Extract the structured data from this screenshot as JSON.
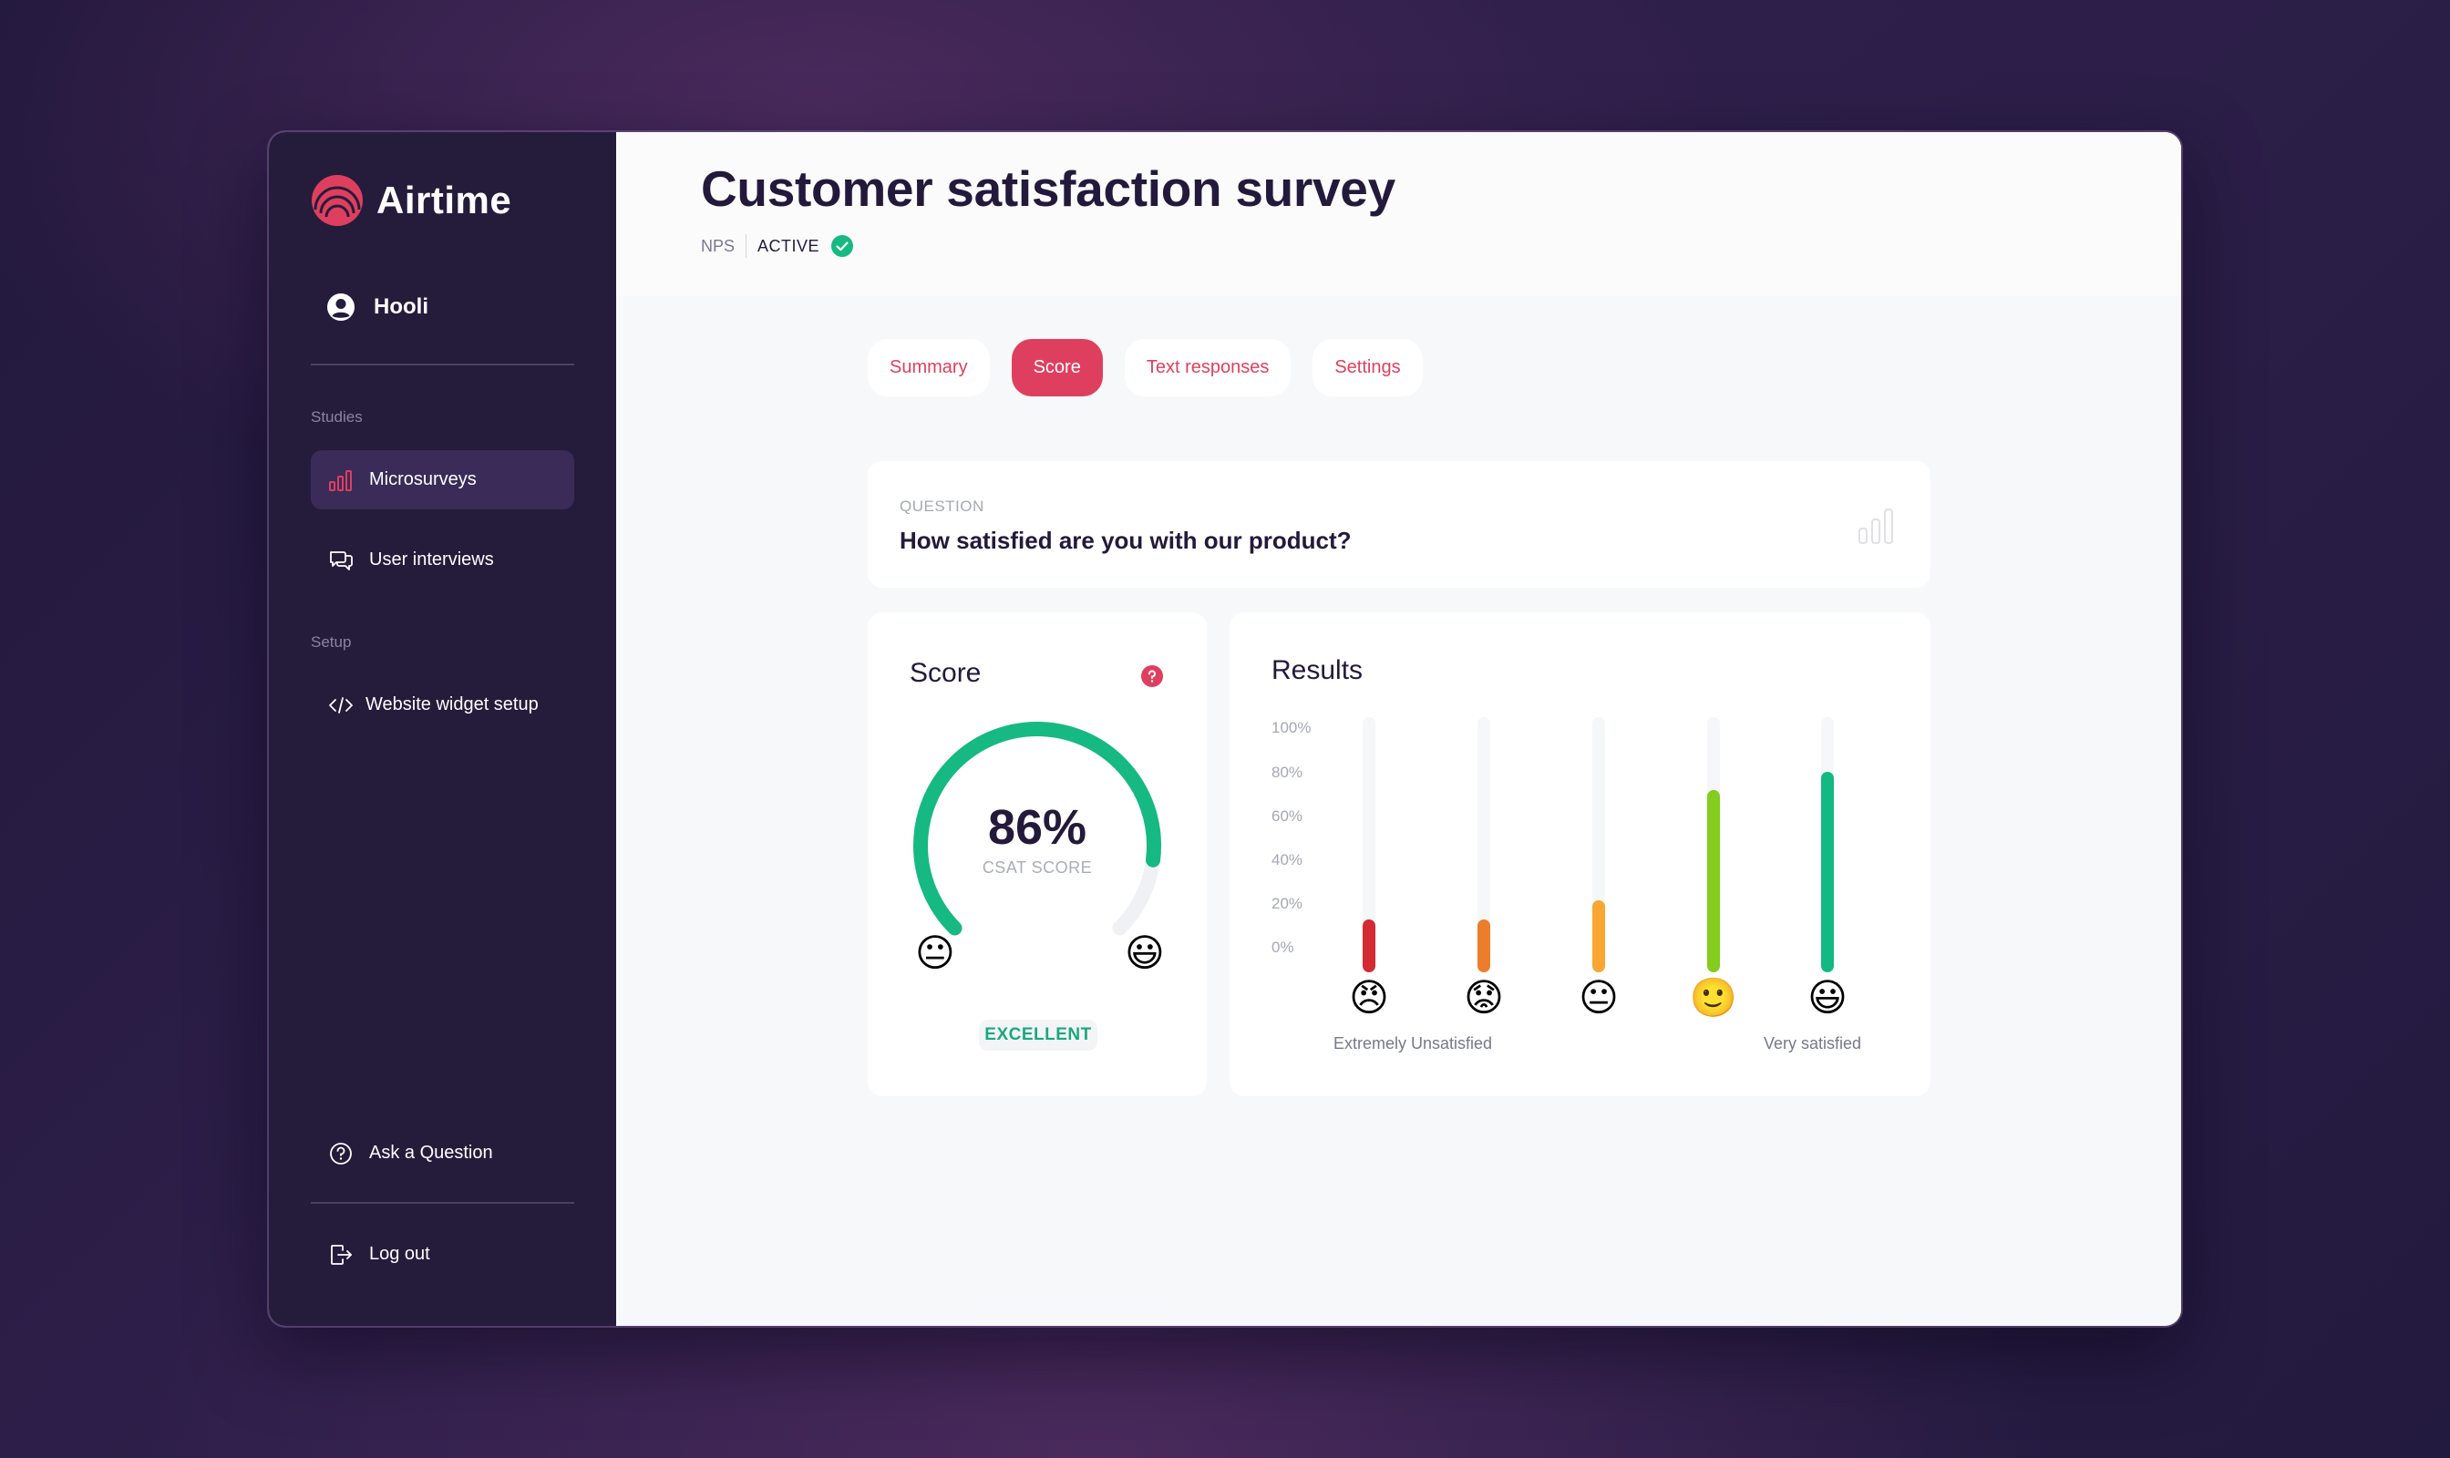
{
  "sidebar": {
    "brand": "Airtime",
    "user": "Hooli",
    "sections": [
      {
        "label": "Studies"
      },
      {
        "label": "Setup"
      }
    ],
    "items": [
      {
        "label": "Microsurveys",
        "icon": "bar-chart-icon",
        "active": true
      },
      {
        "label": "User interviews",
        "icon": "chat-bubbles-icon",
        "active": false
      },
      {
        "label": "Website widget setup",
        "icon": "code-icon",
        "active": false
      }
    ],
    "footer": [
      {
        "label": "Ask a Question",
        "icon": "question-circle-icon"
      },
      {
        "label": "Log out",
        "icon": "logout-icon"
      }
    ]
  },
  "header": {
    "title": "Customer satisfaction survey",
    "type": "NPS",
    "status": "ACTIVE"
  },
  "tabs": [
    {
      "label": "Summary",
      "active": false
    },
    {
      "label": "Score",
      "active": true
    },
    {
      "label": "Text responses",
      "active": false
    },
    {
      "label": "Settings",
      "active": false
    }
  ],
  "question": {
    "label": "QUESTION",
    "text": "How satisfied are you with our product?"
  },
  "score": {
    "title": "Score",
    "value": "86%",
    "value_num": 86,
    "subtitle": "CSAT SCORE",
    "rating": "EXCELLENT",
    "left_emoji": "neutral-face",
    "right_emoji": "grinning-face"
  },
  "results": {
    "title": "Results",
    "y_ticks": [
      "100%",
      "80%",
      "60%",
      "40%",
      "20%",
      "0%"
    ],
    "low_caption": "Extremely Unsatisfied",
    "high_caption": "Very satisfied"
  },
  "colors": {
    "accent": "#df3f5e",
    "sidebar_bg": "#251c3c",
    "success": "#16b981",
    "bars": [
      "#d42a33",
      "#ec7e2b",
      "#f9a633",
      "#84cc1d",
      "#13b981"
    ]
  },
  "chart_data": [
    {
      "type": "bar",
      "title": "Results",
      "categories": [
        "Extremely Unsatisfied",
        "Unsatisfied",
        "Neutral",
        "Satisfied",
        "Very satisfied"
      ],
      "values": [
        18,
        18,
        27,
        77,
        85
      ],
      "xlabel": "",
      "ylabel": "",
      "ylim": [
        0,
        100
      ],
      "y_ticks": [
        "0%",
        "20%",
        "40%",
        "60%",
        "80%",
        "100%"
      ],
      "grid": false,
      "legend": "none",
      "colors": [
        "#d42a33",
        "#ec7e2b",
        "#f9a633",
        "#84cc1d",
        "#13b981"
      ]
    },
    {
      "type": "gauge",
      "title": "Score",
      "value": 86,
      "max": 100,
      "label": "CSAT SCORE",
      "rating": "EXCELLENT"
    }
  ]
}
